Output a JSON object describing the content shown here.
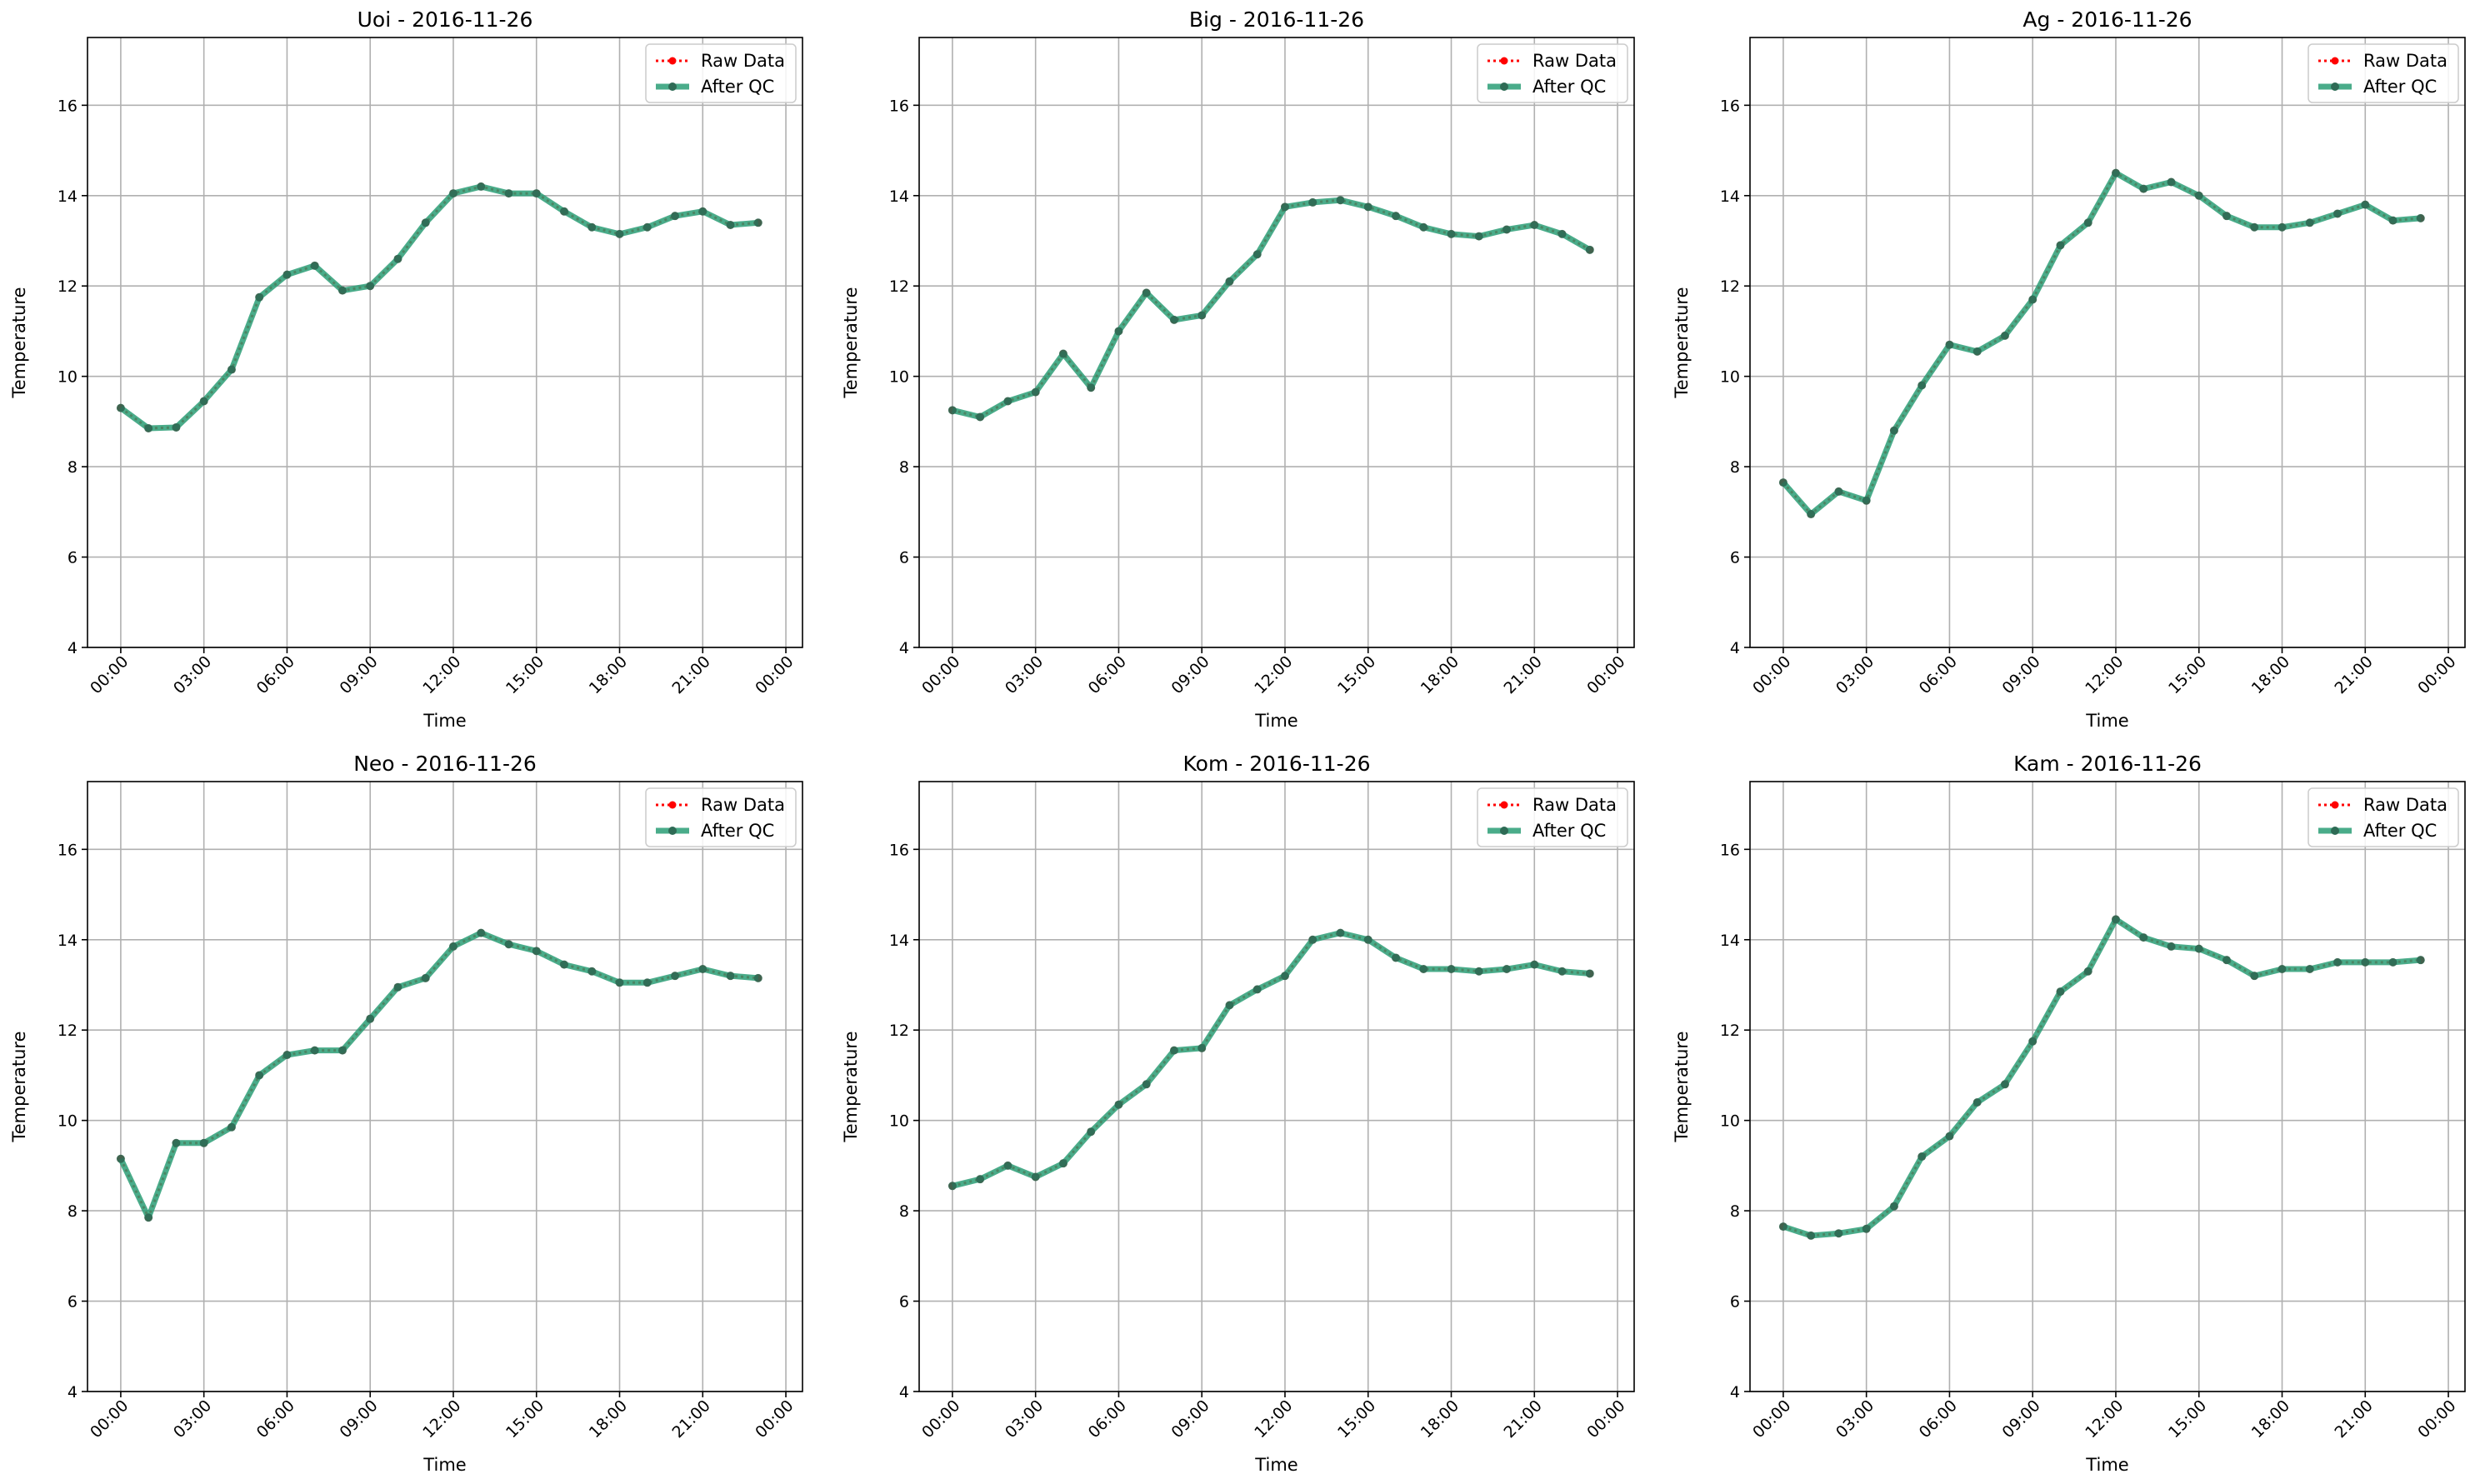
{
  "figure": {
    "background": "#ffffff",
    "raw_color": "#ff0000",
    "qc_color": "#2a9d76"
  },
  "chart_data": [
    {
      "type": "line",
      "title": "Uoi - 2016-11-26",
      "xlabel": "Time",
      "ylabel": "Temperature",
      "xlim": [
        "2016-11-26T00:00",
        "2016-11-26T24:00"
      ],
      "ylim": [
        4,
        17.5
      ],
      "grid": true,
      "legend": "top-right",
      "x_ticks": [
        "00:00",
        "03:00",
        "06:00",
        "09:00",
        "12:00",
        "15:00",
        "18:00",
        "21:00",
        "00:00"
      ],
      "y_ticks": [
        4,
        6,
        8,
        10,
        12,
        14,
        16
      ],
      "x": [
        "00:00",
        "01:00",
        "02:00",
        "03:00",
        "04:00",
        "05:00",
        "06:00",
        "07:00",
        "08:00",
        "09:00",
        "10:00",
        "11:00",
        "12:00",
        "13:00",
        "14:00",
        "15:00",
        "16:00",
        "17:00",
        "18:00",
        "19:00",
        "20:00",
        "21:00",
        "22:00",
        "23:00"
      ],
      "series": [
        {
          "name": "Raw Data",
          "values": [
            9.3,
            8.85,
            8.87,
            9.45,
            10.15,
            11.75,
            12.25,
            12.45,
            11.9,
            12.0,
            12.6,
            13.4,
            14.05,
            14.2,
            14.05,
            14.05,
            13.65,
            13.3,
            13.15,
            13.3,
            13.55,
            13.65,
            13.35,
            13.4
          ]
        },
        {
          "name": "After QC",
          "values": [
            9.3,
            8.85,
            8.87,
            9.45,
            10.15,
            11.75,
            12.25,
            12.45,
            11.9,
            12.0,
            12.6,
            13.4,
            14.05,
            14.2,
            14.05,
            14.05,
            13.65,
            13.3,
            13.15,
            13.3,
            13.55,
            13.65,
            13.35,
            13.4
          ]
        }
      ]
    },
    {
      "type": "line",
      "title": "Big - 2016-11-26",
      "xlabel": "Time",
      "ylabel": "Temperature",
      "xlim": [
        "2016-11-26T00:00",
        "2016-11-26T24:00"
      ],
      "ylim": [
        4,
        17.5
      ],
      "grid": true,
      "legend": "top-right",
      "x_ticks": [
        "00:00",
        "03:00",
        "06:00",
        "09:00",
        "12:00",
        "15:00",
        "18:00",
        "21:00",
        "00:00"
      ],
      "y_ticks": [
        4,
        6,
        8,
        10,
        12,
        14,
        16
      ],
      "x": [
        "00:00",
        "01:00",
        "02:00",
        "03:00",
        "04:00",
        "05:00",
        "06:00",
        "07:00",
        "08:00",
        "09:00",
        "10:00",
        "11:00",
        "12:00",
        "13:00",
        "14:00",
        "15:00",
        "16:00",
        "17:00",
        "18:00",
        "19:00",
        "20:00",
        "21:00",
        "22:00",
        "23:00"
      ],
      "series": [
        {
          "name": "Raw Data",
          "values": [
            9.25,
            9.1,
            9.45,
            9.65,
            10.5,
            9.75,
            11.0,
            11.85,
            11.25,
            11.35,
            12.1,
            12.7,
            13.75,
            13.85,
            13.9,
            13.75,
            13.55,
            13.3,
            13.15,
            13.1,
            13.25,
            13.35,
            13.15,
            12.8
          ]
        },
        {
          "name": "After QC",
          "values": [
            9.25,
            9.1,
            9.45,
            9.65,
            10.5,
            9.75,
            11.0,
            11.85,
            11.25,
            11.35,
            12.1,
            12.7,
            13.75,
            13.85,
            13.9,
            13.75,
            13.55,
            13.3,
            13.15,
            13.1,
            13.25,
            13.35,
            13.15,
            12.8
          ]
        }
      ]
    },
    {
      "type": "line",
      "title": "Ag - 2016-11-26",
      "xlabel": "Time",
      "ylabel": "Temperature",
      "xlim": [
        "2016-11-26T00:00",
        "2016-11-26T24:00"
      ],
      "ylim": [
        4,
        17.5
      ],
      "grid": true,
      "legend": "top-right",
      "x_ticks": [
        "00:00",
        "03:00",
        "06:00",
        "09:00",
        "12:00",
        "15:00",
        "18:00",
        "21:00",
        "00:00"
      ],
      "y_ticks": [
        4,
        6,
        8,
        10,
        12,
        14,
        16
      ],
      "x": [
        "00:00",
        "01:00",
        "02:00",
        "03:00",
        "04:00",
        "05:00",
        "06:00",
        "07:00",
        "08:00",
        "09:00",
        "10:00",
        "11:00",
        "12:00",
        "13:00",
        "14:00",
        "15:00",
        "16:00",
        "17:00",
        "18:00",
        "19:00",
        "20:00",
        "21:00",
        "22:00",
        "23:00"
      ],
      "series": [
        {
          "name": "Raw Data",
          "values": [
            7.65,
            6.95,
            7.45,
            7.25,
            8.8,
            9.8,
            10.7,
            10.55,
            10.9,
            11.7,
            12.9,
            13.4,
            14.5,
            14.15,
            14.3,
            14.0,
            13.55,
            13.3,
            13.3,
            13.4,
            13.6,
            13.8,
            13.45,
            13.5
          ]
        },
        {
          "name": "After QC",
          "values": [
            7.65,
            6.95,
            7.45,
            7.25,
            8.8,
            9.8,
            10.7,
            10.55,
            10.9,
            11.7,
            12.9,
            13.4,
            14.5,
            14.15,
            14.3,
            14.0,
            13.55,
            13.3,
            13.3,
            13.4,
            13.6,
            13.8,
            13.45,
            13.5
          ]
        }
      ]
    },
    {
      "type": "line",
      "title": "Neo - 2016-11-26",
      "xlabel": "Time",
      "ylabel": "Temperature",
      "xlim": [
        "2016-11-26T00:00",
        "2016-11-26T24:00"
      ],
      "ylim": [
        4,
        17.5
      ],
      "grid": true,
      "legend": "top-right",
      "x_ticks": [
        "00:00",
        "03:00",
        "06:00",
        "09:00",
        "12:00",
        "15:00",
        "18:00",
        "21:00",
        "00:00"
      ],
      "y_ticks": [
        4,
        6,
        8,
        10,
        12,
        14,
        16
      ],
      "x": [
        "00:00",
        "01:00",
        "02:00",
        "03:00",
        "04:00",
        "05:00",
        "06:00",
        "07:00",
        "08:00",
        "09:00",
        "10:00",
        "11:00",
        "12:00",
        "13:00",
        "14:00",
        "15:00",
        "16:00",
        "17:00",
        "18:00",
        "19:00",
        "20:00",
        "21:00",
        "22:00",
        "23:00"
      ],
      "series": [
        {
          "name": "Raw Data",
          "values": [
            9.15,
            7.85,
            9.5,
            9.5,
            9.85,
            11.0,
            11.45,
            11.55,
            11.55,
            12.25,
            12.95,
            13.15,
            13.85,
            14.15,
            13.9,
            13.75,
            13.45,
            13.3,
            13.05,
            13.05,
            13.2,
            13.35,
            13.2,
            13.15
          ]
        },
        {
          "name": "After QC",
          "values": [
            9.15,
            7.85,
            9.5,
            9.5,
            9.85,
            11.0,
            11.45,
            11.55,
            11.55,
            12.25,
            12.95,
            13.15,
            13.85,
            14.15,
            13.9,
            13.75,
            13.45,
            13.3,
            13.05,
            13.05,
            13.2,
            13.35,
            13.2,
            13.15
          ]
        }
      ]
    },
    {
      "type": "line",
      "title": "Kom - 2016-11-26",
      "xlabel": "Time",
      "ylabel": "Temperature",
      "xlim": [
        "2016-11-26T00:00",
        "2016-11-26T24:00"
      ],
      "ylim": [
        4,
        17.5
      ],
      "grid": true,
      "legend": "top-right",
      "x_ticks": [
        "00:00",
        "03:00",
        "06:00",
        "09:00",
        "12:00",
        "15:00",
        "18:00",
        "21:00",
        "00:00"
      ],
      "y_ticks": [
        4,
        6,
        8,
        10,
        12,
        14,
        16
      ],
      "x": [
        "00:00",
        "01:00",
        "02:00",
        "03:00",
        "04:00",
        "05:00",
        "06:00",
        "07:00",
        "08:00",
        "09:00",
        "10:00",
        "11:00",
        "12:00",
        "13:00",
        "14:00",
        "15:00",
        "16:00",
        "17:00",
        "18:00",
        "19:00",
        "20:00",
        "21:00",
        "22:00",
        "23:00"
      ],
      "series": [
        {
          "name": "Raw Data",
          "values": [
            8.55,
            8.7,
            9.0,
            8.75,
            9.05,
            9.75,
            10.35,
            10.8,
            11.55,
            11.6,
            12.55,
            12.9,
            13.2,
            14.0,
            14.15,
            14.0,
            13.6,
            13.35,
            13.35,
            13.3,
            13.35,
            13.45,
            13.3,
            13.25
          ]
        },
        {
          "name": "After QC",
          "values": [
            8.55,
            8.7,
            9.0,
            8.75,
            9.05,
            9.75,
            10.35,
            10.8,
            11.55,
            11.6,
            12.55,
            12.9,
            13.2,
            14.0,
            14.15,
            14.0,
            13.6,
            13.35,
            13.35,
            13.3,
            13.35,
            13.45,
            13.3,
            13.25
          ]
        }
      ]
    },
    {
      "type": "line",
      "title": "Kam - 2016-11-26",
      "xlabel": "Time",
      "ylabel": "Temperature",
      "xlim": [
        "2016-11-26T00:00",
        "2016-11-26T24:00"
      ],
      "ylim": [
        4,
        17.5
      ],
      "grid": true,
      "legend": "top-right",
      "x_ticks": [
        "00:00",
        "03:00",
        "06:00",
        "09:00",
        "12:00",
        "15:00",
        "18:00",
        "21:00",
        "00:00"
      ],
      "y_ticks": [
        4,
        6,
        8,
        10,
        12,
        14,
        16
      ],
      "x": [
        "00:00",
        "01:00",
        "02:00",
        "03:00",
        "04:00",
        "05:00",
        "06:00",
        "07:00",
        "08:00",
        "09:00",
        "10:00",
        "11:00",
        "12:00",
        "13:00",
        "14:00",
        "15:00",
        "16:00",
        "17:00",
        "18:00",
        "19:00",
        "20:00",
        "21:00",
        "22:00",
        "23:00"
      ],
      "series": [
        {
          "name": "Raw Data",
          "values": [
            7.65,
            7.45,
            7.5,
            7.6,
            8.1,
            9.2,
            9.65,
            10.4,
            10.8,
            11.75,
            12.85,
            13.3,
            14.45,
            14.05,
            13.85,
            13.8,
            13.55,
            13.2,
            13.35,
            13.35,
            13.5,
            13.5,
            13.5,
            13.55
          ]
        },
        {
          "name": "After QC",
          "values": [
            7.65,
            7.45,
            7.5,
            7.6,
            8.1,
            9.2,
            9.65,
            10.4,
            10.8,
            11.75,
            12.85,
            13.3,
            14.45,
            14.05,
            13.85,
            13.8,
            13.55,
            13.2,
            13.35,
            13.35,
            13.5,
            13.5,
            13.5,
            13.55
          ]
        }
      ]
    }
  ]
}
